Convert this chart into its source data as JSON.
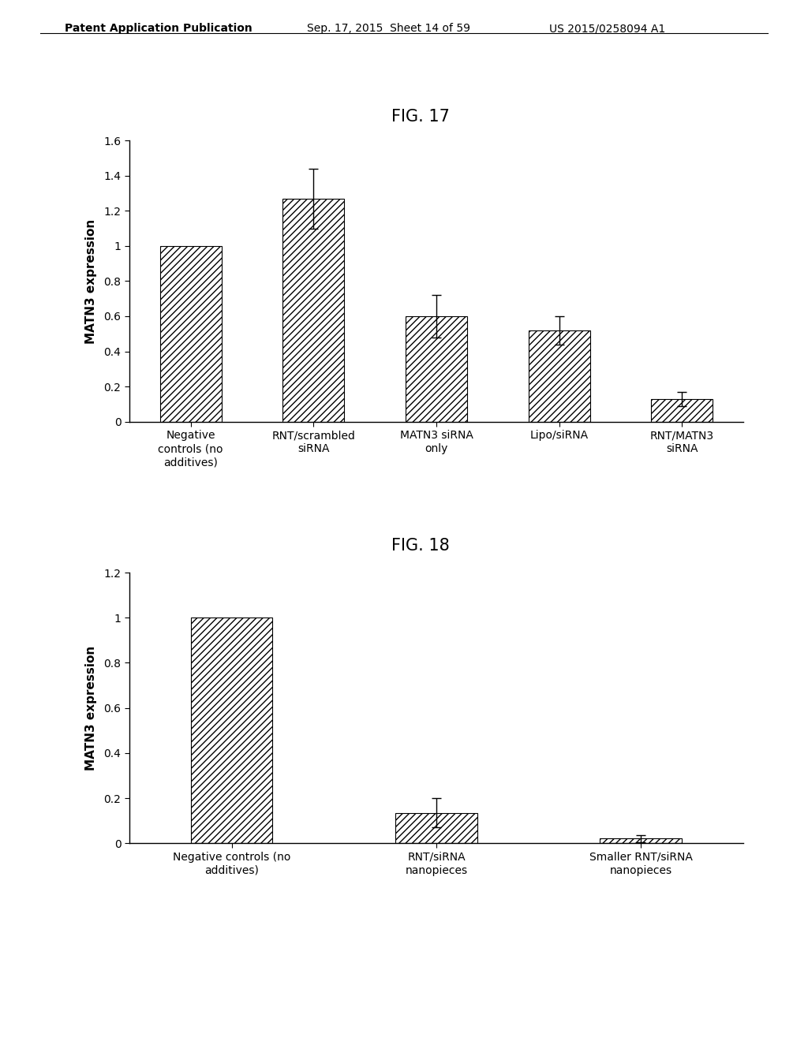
{
  "fig17": {
    "title": "FIG. 17",
    "categories": [
      "Negative\ncontrols (no\nadditives)",
      "RNT/scrambled\nsiRNA",
      "MATN3 siRNA\nonly",
      "Lipo/siRNA",
      "RNT/MATN3\nsiRNA"
    ],
    "values": [
      1.0,
      1.27,
      0.6,
      0.52,
      0.13
    ],
    "errors": [
      0.0,
      0.17,
      0.12,
      0.08,
      0.04
    ],
    "ylabel": "MATN3 expression",
    "ylim": [
      0,
      1.6
    ],
    "yticks": [
      0,
      0.2,
      0.4,
      0.6,
      0.8,
      1.0,
      1.2,
      1.4,
      1.6
    ]
  },
  "fig18": {
    "title": "FIG. 18",
    "categories": [
      "Negative controls (no\nadditives)",
      "RNT/siRNA\nnanopieces",
      "Smaller RNT/siRNA\nnanopieces"
    ],
    "values": [
      1.0,
      0.135,
      0.02
    ],
    "errors": [
      0.0,
      0.065,
      0.015
    ],
    "ylabel": "MATN3 expression",
    "ylim": [
      0,
      1.2
    ],
    "yticks": [
      0,
      0.2,
      0.4,
      0.6,
      0.8,
      1.0,
      1.2
    ]
  },
  "header_text": "Patent Application Publication",
  "header_date": "Sep. 17, 2015  Sheet 14 of 59",
  "header_patent": "US 2015/0258094 A1",
  "background_color": "#ffffff",
  "bar_facecolor": "#ffffff",
  "bar_edgecolor": "#000000",
  "hatch_pattern": "////",
  "title_fontsize": 15,
  "axis_fontsize": 11,
  "tick_fontsize": 10,
  "header_fontsize": 10
}
